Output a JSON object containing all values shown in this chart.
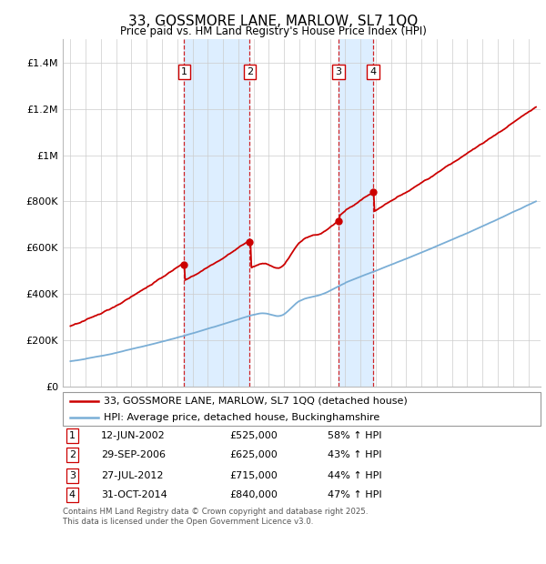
{
  "title": "33, GOSSMORE LANE, MARLOW, SL7 1QQ",
  "subtitle": "Price paid vs. HM Land Registry's House Price Index (HPI)",
  "legend_line1": "33, GOSSMORE LANE, MARLOW, SL7 1QQ (detached house)",
  "legend_line2": "HPI: Average price, detached house, Buckinghamshire",
  "footer1": "Contains HM Land Registry data © Crown copyright and database right 2025.",
  "footer2": "This data is licensed under the Open Government Licence v3.0.",
  "sales": [
    {
      "num": 1,
      "date_label": "12-JUN-2002",
      "price": "£525,000",
      "hpi": "58% ↑ HPI",
      "year": 2002.45,
      "price_val": 525000
    },
    {
      "num": 2,
      "date_label": "29-SEP-2006",
      "price": "£625,000",
      "hpi": "43% ↑ HPI",
      "year": 2006.75,
      "price_val": 625000
    },
    {
      "num": 3,
      "date_label": "27-JUL-2012",
      "price": "£715,000",
      "hpi": "44% ↑ HPI",
      "year": 2012.57,
      "price_val": 715000
    },
    {
      "num": 4,
      "date_label": "31-OCT-2014",
      "price": "£840,000",
      "hpi": "47% ↑ HPI",
      "year": 2014.83,
      "price_val": 840000
    }
  ],
  "red_color": "#cc0000",
  "blue_color": "#7aaed6",
  "shaded_color": "#ddeeff",
  "ylim": [
    0,
    1500000
  ],
  "yticks": [
    0,
    200000,
    400000,
    600000,
    800000,
    1000000,
    1200000,
    1400000
  ],
  "ytick_labels": [
    "£0",
    "£200K",
    "£400K",
    "£600K",
    "£800K",
    "£1M",
    "£1.2M",
    "£1.4M"
  ],
  "xmin": 1994.5,
  "xmax": 2025.8,
  "xticks": [
    1995,
    1996,
    1997,
    1998,
    1999,
    2000,
    2001,
    2002,
    2003,
    2004,
    2005,
    2006,
    2007,
    2008,
    2009,
    2010,
    2011,
    2012,
    2013,
    2014,
    2015,
    2016,
    2017,
    2018,
    2019,
    2020,
    2021,
    2022,
    2023,
    2024,
    2025
  ]
}
